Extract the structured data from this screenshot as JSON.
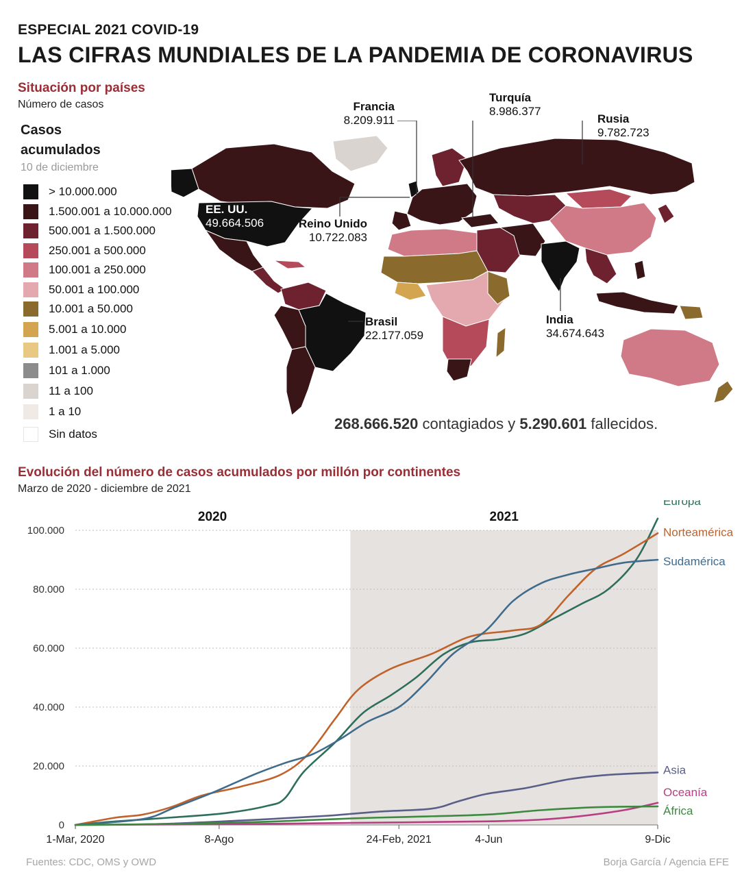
{
  "header": {
    "kicker": "ESPECIAL 2021 COVID-19",
    "title": "LAS CIFRAS MUNDIALES DE LA PANDEMIA DE CORONAVIRUS"
  },
  "map_section": {
    "title": "Situación por países",
    "subtitle": "Número de casos",
    "legend_title_line1": "Casos",
    "legend_title_line2": "acumulados",
    "legend_date": "10 de diciembre",
    "legend": [
      {
        "label": "> 10.000.000",
        "color": "#111111"
      },
      {
        "label": "1.500.001 a 10.000.000",
        "color": "#3a1518"
      },
      {
        "label": "500.001 a 1.500.000",
        "color": "#6e2230"
      },
      {
        "label": "250.001 a 500.000",
        "color": "#b44a5a"
      },
      {
        "label": "100.001 a 250.000",
        "color": "#cf7a86"
      },
      {
        "label": "50.001 a 100.000",
        "color": "#e4a9ae"
      },
      {
        "label": "10.001 a 50.000",
        "color": "#8b6a2e"
      },
      {
        "label": "5.001 a 10.000",
        "color": "#d4a550"
      },
      {
        "label": "1.001 a 5.000",
        "color": "#e8c882"
      },
      {
        "label": "101 a 1.000",
        "color": "#8c8c8c"
      },
      {
        "label": "11 a 100",
        "color": "#d9d4cf"
      },
      {
        "label": "1 a 10",
        "color": "#efeae6"
      },
      {
        "label": "Sin datos",
        "color": "#ffffff"
      }
    ],
    "callouts": {
      "usa": {
        "name": "EE. UU.",
        "value": "49.664.506"
      },
      "francia": {
        "name": "Francia",
        "value": "8.209.911"
      },
      "turquia": {
        "name": "Turquía",
        "value": "8.986.377"
      },
      "rusia": {
        "name": "Rusia",
        "value": "9.782.723"
      },
      "reino_unido": {
        "name": "Reino Unido",
        "value": "10.722.083"
      },
      "brasil": {
        "name": "Brasil",
        "value": "22.177.059"
      },
      "india": {
        "name": "India",
        "value": "34.674.643"
      }
    },
    "totals": {
      "cases": "268.666.520",
      "cases_text": "contagiados y",
      "deaths": "5.290.601",
      "deaths_text": "fallecidos."
    }
  },
  "chart_section": {
    "title": "Evolución del número de casos acumulados por millón por continentes",
    "subtitle": "Marzo de 2020 - diciembre de 2021"
  },
  "chart_data": {
    "type": "line",
    "title": "Evolución del número de casos acumulados por millón por continentes",
    "subtitle": "Marzo de 2020 - diciembre de 2021",
    "x_unit": "date",
    "xlim": [
      "2020-03-01",
      "2021-12-09"
    ],
    "ylim": [
      0,
      100000
    ],
    "x_ticks": [
      {
        "date": "2020-03-01",
        "label": "1-Mar, 2020"
      },
      {
        "date": "2020-08-08",
        "label": "8-Ago"
      },
      {
        "date": "2021-02-24",
        "label": "24-Feb, 2021"
      },
      {
        "date": "2021-06-04",
        "label": "4-Jun"
      },
      {
        "date": "2021-12-09",
        "label": "9-Dic"
      }
    ],
    "y_ticks": [
      {
        "value": 0,
        "label": "0"
      },
      {
        "value": 20000,
        "label": "20.000"
      },
      {
        "value": 40000,
        "label": "40.000"
      },
      {
        "value": 60000,
        "label": "60.000"
      },
      {
        "value": 80000,
        "label": "80.000"
      },
      {
        "value": 100000,
        "label": "100.000"
      }
    ],
    "grid": true,
    "year_bands": [
      {
        "label": "2020",
        "start": "2020-03-01",
        "end": "2020-12-31",
        "shaded": false
      },
      {
        "label": "2021",
        "start": "2021-01-01",
        "end": "2021-12-09",
        "shaded": true
      }
    ],
    "series": [
      {
        "name": "Europa",
        "color": "#2e6e5d",
        "points": [
          [
            "2020-03-01",
            0
          ],
          [
            "2020-04-15",
            1200
          ],
          [
            "2020-06-15",
            2500
          ],
          [
            "2020-08-15",
            4000
          ],
          [
            "2020-10-01",
            6500
          ],
          [
            "2020-10-20",
            9000
          ],
          [
            "2020-11-10",
            18000
          ],
          [
            "2020-12-15",
            28000
          ],
          [
            "2021-01-15",
            38000
          ],
          [
            "2021-02-15",
            44000
          ],
          [
            "2021-03-15",
            50000
          ],
          [
            "2021-04-15",
            58000
          ],
          [
            "2021-05-15",
            62000
          ],
          [
            "2021-06-15",
            63000
          ],
          [
            "2021-07-15",
            65000
          ],
          [
            "2021-08-15",
            70000
          ],
          [
            "2021-09-15",
            75000
          ],
          [
            "2021-10-15",
            80000
          ],
          [
            "2021-11-15",
            90000
          ],
          [
            "2021-12-09",
            104000
          ]
        ]
      },
      {
        "name": "Norteamérica",
        "color": "#c0622a",
        "points": [
          [
            "2020-03-01",
            0
          ],
          [
            "2020-04-15",
            2500
          ],
          [
            "2020-05-15",
            3500
          ],
          [
            "2020-06-15",
            6000
          ],
          [
            "2020-07-20",
            10000
          ],
          [
            "2020-09-01",
            13000
          ],
          [
            "2020-10-15",
            17000
          ],
          [
            "2020-11-15",
            24000
          ],
          [
            "2020-12-15",
            36000
          ],
          [
            "2021-01-10",
            46000
          ],
          [
            "2021-02-15",
            53000
          ],
          [
            "2021-04-01",
            58000
          ],
          [
            "2021-05-15",
            64000
          ],
          [
            "2021-07-01",
            66000
          ],
          [
            "2021-08-01",
            68000
          ],
          [
            "2021-09-01",
            78000
          ],
          [
            "2021-10-01",
            87000
          ],
          [
            "2021-11-01",
            92000
          ],
          [
            "2021-12-09",
            99000
          ]
        ]
      },
      {
        "name": "Sudamérica",
        "color": "#3f6b8c",
        "points": [
          [
            "2020-03-01",
            0
          ],
          [
            "2020-05-15",
            2000
          ],
          [
            "2020-06-20",
            6000
          ],
          [
            "2020-08-01",
            11000
          ],
          [
            "2020-09-15",
            17000
          ],
          [
            "2020-10-20",
            21000
          ],
          [
            "2020-11-20",
            24000
          ],
          [
            "2020-12-20",
            29000
          ],
          [
            "2021-01-20",
            35000
          ],
          [
            "2021-02-24",
            40000
          ],
          [
            "2021-03-25",
            48000
          ],
          [
            "2021-04-25",
            58000
          ],
          [
            "2021-06-01",
            66000
          ],
          [
            "2021-07-01",
            76000
          ],
          [
            "2021-08-01",
            82000
          ],
          [
            "2021-09-01",
            85000
          ],
          [
            "2021-10-01",
            87000
          ],
          [
            "2021-11-01",
            89000
          ],
          [
            "2021-12-09",
            90000
          ]
        ]
      },
      {
        "name": "Asia",
        "color": "#5a5f8a",
        "points": [
          [
            "2020-03-01",
            0
          ],
          [
            "2020-06-01",
            300
          ],
          [
            "2020-09-01",
            1500
          ],
          [
            "2020-12-01",
            3000
          ],
          [
            "2021-02-01",
            4500
          ],
          [
            "2021-04-01",
            5500
          ],
          [
            "2021-05-01",
            8000
          ],
          [
            "2021-06-01",
            10500
          ],
          [
            "2021-07-15",
            12500
          ],
          [
            "2021-09-01",
            15500
          ],
          [
            "2021-10-15",
            17000
          ],
          [
            "2021-12-09",
            17800
          ]
        ]
      },
      {
        "name": "Oceanía",
        "color": "#b73e83",
        "points": [
          [
            "2020-03-01",
            0
          ],
          [
            "2020-09-01",
            300
          ],
          [
            "2021-01-01",
            700
          ],
          [
            "2021-06-01",
            1200
          ],
          [
            "2021-08-01",
            1800
          ],
          [
            "2021-09-15",
            3000
          ],
          [
            "2021-11-01",
            5000
          ],
          [
            "2021-12-09",
            7500
          ]
        ]
      },
      {
        "name": "África",
        "color": "#3c8a3f",
        "points": [
          [
            "2020-03-01",
            0
          ],
          [
            "2020-07-01",
            400
          ],
          [
            "2020-10-01",
            1100
          ],
          [
            "2021-01-01",
            2200
          ],
          [
            "2021-03-01",
            2700
          ],
          [
            "2021-06-01",
            3500
          ],
          [
            "2021-08-01",
            5000
          ],
          [
            "2021-10-01",
            6000
          ],
          [
            "2021-12-09",
            6300
          ]
        ]
      }
    ]
  },
  "footer": {
    "sources": "Fuentes: CDC, OMS y OWD",
    "credit": "Borja García / Agencia EFE"
  }
}
